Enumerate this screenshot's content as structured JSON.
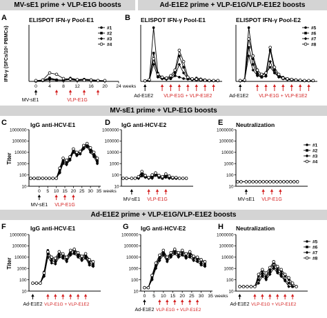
{
  "banners": {
    "top_left": "MV-sE1 prime + VLP-E1G boosts",
    "top_right": "Ad-E1E2 prime + VLP-E1G/VLP-E1E2 boosts",
    "middle": "MV-sE1 prime + VLP-E1G boosts",
    "bottom": "Ad-E1E2 prime + VLP-E1G/VLP-E1E2 boosts"
  },
  "panel_letters": [
    "A",
    "B",
    "C",
    "D",
    "E",
    "F",
    "G",
    "H"
  ],
  "panel_titles": {
    "A": "ELISPOT IFN-γ Pool-E1",
    "B1": "ELISPOT IFN-γ Pool-E1",
    "B2": "ELISPOT IFN-γ Pool-E2",
    "C": "IgG anti-HCV-E1",
    "D": "IgG anti-HCV-E2",
    "E": "Neutralization",
    "F": "IgG anti-HCV-E1",
    "G": "IgG anti-HCV-E2",
    "H": "Neutralization"
  },
  "axis_labels": {
    "elispot_y": "IFN-γ (SFCs/10⁶ PBMCs)",
    "titer_y": "Titer",
    "weeks": "weeks"
  },
  "annotations": {
    "mv_prime": "MV-sE1",
    "ad_prime": "Ad-E1E2",
    "vlp_e1g": "VLP-E1G",
    "vlp_combo": "VLP-E1G + VLP-E1E2"
  },
  "legends": {
    "mv": [
      "#1",
      "#2",
      "#3",
      "#4"
    ],
    "ad": [
      "#5",
      "#6",
      "#7",
      "#8"
    ]
  },
  "colors": {
    "arrow_red": "#d42020",
    "banner": "#d4d4d4"
  },
  "chart_data": [
    {
      "panel": "A",
      "type": "line",
      "title": "ELISPOT IFN-γ Pool-E1",
      "ylabel": "IFN-γ (SFCs/10⁶ PBMCs)",
      "xticks": [
        0,
        4,
        8,
        12,
        16,
        20,
        24
      ],
      "xlim": [
        -2,
        24
      ],
      "ylim": [
        0,
        2000
      ],
      "x": [
        0,
        2,
        4,
        6,
        8,
        10,
        12,
        14,
        16,
        18,
        20
      ],
      "series": [
        {
          "name": "#1",
          "values": [
            20,
            40,
            130,
            60,
            40,
            120,
            60,
            80,
            60,
            40,
            20
          ]
        },
        {
          "name": "#2",
          "values": [
            10,
            30,
            90,
            50,
            30,
            80,
            40,
            60,
            40,
            30,
            20
          ]
        },
        {
          "name": "#3",
          "values": [
            15,
            20,
            60,
            40,
            50,
            60,
            30,
            50,
            30,
            20,
            10
          ]
        },
        {
          "name": "#4",
          "values": [
            30,
            50,
            300,
            250,
            100,
            80,
            60,
            40,
            50,
            30,
            30
          ]
        }
      ]
    },
    {
      "panel": "B1",
      "type": "line",
      "title": "ELISPOT IFN-γ Pool-E1",
      "xlim": [
        -2,
        36
      ],
      "ylim": [
        0,
        2000
      ],
      "x": [
        0,
        2,
        4,
        6,
        8,
        10,
        12,
        14,
        16,
        18,
        20,
        22,
        24,
        26,
        28,
        30,
        32,
        34
      ],
      "series": [
        {
          "name": "#5",
          "values": [
            20,
            50,
            1900,
            300,
            100,
            80,
            90,
            200,
            150,
            100,
            80,
            60,
            120,
            90,
            60,
            40,
            30,
            30
          ]
        },
        {
          "name": "#6",
          "values": [
            20,
            40,
            1000,
            200,
            120,
            100,
            150,
            300,
            900,
            500,
            100,
            80,
            60,
            40,
            30,
            20,
            20,
            20
          ]
        },
        {
          "name": "#7",
          "values": [
            10,
            30,
            600,
            150,
            90,
            70,
            100,
            200,
            600,
            300,
            90,
            60,
            50,
            40,
            30,
            20,
            20,
            20
          ]
        },
        {
          "name": "#8",
          "values": [
            20,
            60,
            800,
            250,
            150,
            120,
            200,
            400,
            1100,
            700,
            150,
            90,
            80,
            60,
            40,
            30,
            30,
            30
          ]
        }
      ]
    },
    {
      "panel": "B2",
      "type": "line",
      "title": "ELISPOT IFN-γ Pool-E2",
      "xlim": [
        -2,
        36
      ],
      "ylim": [
        0,
        2000
      ],
      "x": [
        0,
        2,
        4,
        6,
        8,
        10,
        12,
        14,
        16,
        18,
        20,
        22,
        24,
        26,
        28,
        30,
        32,
        34
      ],
      "series": [
        {
          "name": "#5",
          "values": [
            20,
            40,
            1900,
            800,
            300,
            200,
            300,
            500,
            300,
            200,
            150,
            100,
            80,
            60,
            40,
            30,
            20,
            20
          ]
        },
        {
          "name": "#6",
          "values": [
            20,
            30,
            1200,
            600,
            250,
            150,
            200,
            1100,
            400,
            200,
            100,
            80,
            60,
            40,
            30,
            20,
            20,
            20
          ]
        },
        {
          "name": "#7",
          "values": [
            10,
            20,
            900,
            400,
            200,
            150,
            180,
            700,
            300,
            150,
            90,
            60,
            50,
            40,
            30,
            20,
            20,
            20
          ]
        },
        {
          "name": "#8",
          "values": [
            30,
            50,
            1500,
            900,
            400,
            250,
            300,
            1200,
            500,
            250,
            120,
            90,
            70,
            50,
            40,
            30,
            30,
            30
          ]
        }
      ]
    },
    {
      "panel": "C",
      "type": "line",
      "title": "IgG anti-HCV-E1",
      "ylabel": "Titer",
      "yscale": "log",
      "xticks": [
        0,
        5,
        10,
        15,
        20,
        25,
        30,
        35
      ],
      "xlim": [
        -6,
        36
      ],
      "ylim": [
        10,
        1000000
      ],
      "x": [
        -5,
        -3,
        -1,
        0,
        2,
        4,
        6,
        8,
        10,
        12,
        14,
        16,
        18,
        20,
        22,
        24,
        26,
        28,
        30,
        32,
        34
      ],
      "series": [
        {
          "name": "#1",
          "values": [
            50,
            50,
            50,
            50,
            50,
            50,
            50,
            50,
            50,
            300,
            2000,
            1500,
            3000,
            15000,
            8000,
            10000,
            30000,
            50000,
            20000,
            8000,
            2000
          ]
        },
        {
          "name": "#2",
          "values": [
            50,
            50,
            50,
            50,
            50,
            50,
            50,
            50,
            50,
            200,
            1500,
            1000,
            2500,
            12000,
            6000,
            8000,
            25000,
            40000,
            15000,
            6000,
            1500
          ]
        },
        {
          "name": "#3",
          "values": [
            50,
            50,
            50,
            50,
            50,
            50,
            50,
            50,
            50,
            150,
            1000,
            800,
            2000,
            10000,
            5000,
            7000,
            20000,
            30000,
            10000,
            4000,
            1000
          ]
        },
        {
          "name": "#4",
          "values": [
            50,
            50,
            50,
            50,
            50,
            50,
            50,
            50,
            50,
            400,
            3000,
            2000,
            4000,
            20000,
            10000,
            12000,
            40000,
            60000,
            25000,
            10000,
            3000
          ]
        }
      ]
    },
    {
      "panel": "D",
      "type": "line",
      "title": "IgG anti-HCV-E2",
      "yscale": "log",
      "xlim": [
        -6,
        36
      ],
      "ylim": [
        10,
        1000000
      ],
      "x": [
        -5,
        -3,
        0,
        2,
        4,
        6,
        8,
        10,
        12,
        14,
        16,
        18,
        20,
        22,
        24,
        26,
        28,
        30,
        32
      ],
      "series": [
        {
          "name": "#1",
          "values": [
            50,
            50,
            50,
            50,
            50,
            100,
            70,
            50,
            60,
            120,
            80,
            60,
            100,
            70,
            60,
            60,
            50,
            50,
            50
          ]
        },
        {
          "name": "#2",
          "values": [
            50,
            50,
            50,
            50,
            60,
            150,
            80,
            60,
            80,
            100,
            60,
            50,
            80,
            60,
            50,
            50,
            50,
            50,
            50
          ]
        },
        {
          "name": "#3",
          "values": [
            50,
            50,
            50,
            50,
            50,
            80,
            60,
            50,
            50,
            90,
            60,
            50,
            60,
            50,
            50,
            50,
            50,
            50,
            50
          ]
        },
        {
          "name": "#4",
          "values": [
            50,
            50,
            50,
            50,
            70,
            200,
            90,
            60,
            100,
            150,
            90,
            70,
            120,
            80,
            60,
            60,
            50,
            50,
            50
          ]
        }
      ]
    },
    {
      "panel": "E",
      "type": "line",
      "title": "Neutralization",
      "yscale": "log",
      "xlim": [
        -6,
        36
      ],
      "ylim": [
        10,
        1000000
      ],
      "x": [
        -5,
        -3,
        0,
        2,
        4,
        6,
        8,
        10,
        12,
        14,
        16,
        18,
        20,
        22,
        24,
        26,
        28,
        30
      ],
      "series": [
        {
          "name": "#1",
          "values": [
            25,
            25,
            25,
            25,
            25,
            25,
            25,
            25,
            25,
            25,
            25,
            25,
            25,
            25,
            25,
            25,
            25,
            25
          ]
        },
        {
          "name": "#2",
          "values": [
            25,
            25,
            25,
            25,
            25,
            25,
            25,
            25,
            25,
            25,
            25,
            25,
            25,
            25,
            25,
            25,
            25,
            25
          ]
        },
        {
          "name": "#3",
          "values": [
            25,
            25,
            25,
            25,
            25,
            25,
            25,
            25,
            25,
            25,
            25,
            25,
            25,
            25,
            25,
            25,
            25,
            25
          ]
        },
        {
          "name": "#4",
          "values": [
            25,
            25,
            25,
            25,
            25,
            25,
            25,
            25,
            25,
            25,
            25,
            25,
            25,
            25,
            25,
            25,
            25,
            25
          ]
        }
      ]
    },
    {
      "panel": "F",
      "type": "line",
      "title": "IgG anti-HCV-E1",
      "ylabel": "Titer",
      "yscale": "log",
      "xlim": [
        -2,
        36
      ],
      "ylim": [
        10,
        1000000
      ],
      "x": [
        0,
        2,
        4,
        6,
        8,
        10,
        12,
        14,
        16,
        18,
        20,
        22,
        24,
        26,
        28,
        30,
        32
      ],
      "series": [
        {
          "name": "#5",
          "values": [
            50,
            50,
            50,
            500,
            40000,
            8000,
            6000,
            20000,
            15000,
            8000,
            30000,
            40000,
            20000,
            10000,
            15000,
            5000,
            3000
          ]
        },
        {
          "name": "#6",
          "values": [
            50,
            50,
            50,
            300,
            20000,
            5000,
            4000,
            15000,
            10000,
            6000,
            20000,
            25000,
            15000,
            8000,
            10000,
            3000,
            2000
          ]
        },
        {
          "name": "#7",
          "values": [
            50,
            50,
            50,
            200,
            10000,
            3000,
            2500,
            10000,
            8000,
            4000,
            15000,
            20000,
            10000,
            5000,
            8000,
            2000,
            1500
          ]
        },
        {
          "name": "#8",
          "values": [
            50,
            50,
            50,
            400,
            30000,
            10000,
            8000,
            30000,
            20000,
            10000,
            40000,
            50000,
            25000,
            12000,
            20000,
            6000,
            4000
          ]
        }
      ]
    },
    {
      "panel": "G",
      "type": "line",
      "title": "IgG anti-HCV-E2",
      "yscale": "log",
      "xticks": [
        0,
        5,
        10,
        15,
        20,
        25,
        30,
        35
      ],
      "xlim": [
        -2,
        36
      ],
      "ylim": [
        10,
        1000000
      ],
      "x": [
        0,
        2,
        4,
        6,
        8,
        10,
        12,
        14,
        16,
        18,
        20,
        22,
        24,
        26,
        28,
        30,
        32
      ],
      "series": [
        {
          "name": "#5",
          "values": [
            20,
            20,
            200,
            2000,
            10000,
            30000,
            8000,
            20000,
            40000,
            20000,
            30000,
            15000,
            25000,
            10000,
            8000,
            5000,
            3000
          ]
        },
        {
          "name": "#6",
          "values": [
            20,
            20,
            150,
            1500,
            8000,
            20000,
            6000,
            15000,
            30000,
            15000,
            20000,
            10000,
            15000,
            8000,
            6000,
            3000,
            2000
          ]
        },
        {
          "name": "#7",
          "values": [
            20,
            20,
            100,
            1000,
            5000,
            15000,
            4000,
            10000,
            20000,
            10000,
            15000,
            8000,
            10000,
            5000,
            4000,
            2000,
            1500
          ]
        },
        {
          "name": "#8",
          "values": [
            20,
            20,
            250,
            3000,
            15000,
            40000,
            10000,
            25000,
            50000,
            25000,
            40000,
            20000,
            30000,
            12000,
            10000,
            6000,
            4000
          ]
        }
      ]
    },
    {
      "panel": "H",
      "type": "line",
      "title": "Neutralization",
      "yscale": "log",
      "xlim": [
        -2,
        36
      ],
      "ylim": [
        10,
        1000000
      ],
      "x": [
        0,
        2,
        4,
        6,
        8,
        10,
        12,
        14,
        16,
        18,
        20,
        22,
        24,
        26,
        28,
        30
      ],
      "series": [
        {
          "name": "#5",
          "values": [
            25,
            25,
            25,
            25,
            25,
            200,
            500,
            200,
            800,
            3000,
            1000,
            500,
            200,
            100,
            25,
            25
          ]
        },
        {
          "name": "#6",
          "values": [
            25,
            25,
            25,
            25,
            25,
            100,
            300,
            150,
            500,
            1500,
            600,
            300,
            100,
            50,
            25,
            25
          ]
        },
        {
          "name": "#7",
          "values": [
            25,
            25,
            25,
            25,
            25,
            50,
            200,
            100,
            300,
            1000,
            400,
            200,
            80,
            25,
            25,
            25
          ]
        },
        {
          "name": "#8",
          "values": [
            25,
            25,
            25,
            25,
            25,
            300,
            800,
            400,
            1200,
            4000,
            1500,
            800,
            300,
            150,
            50,
            25
          ]
        }
      ]
    }
  ]
}
